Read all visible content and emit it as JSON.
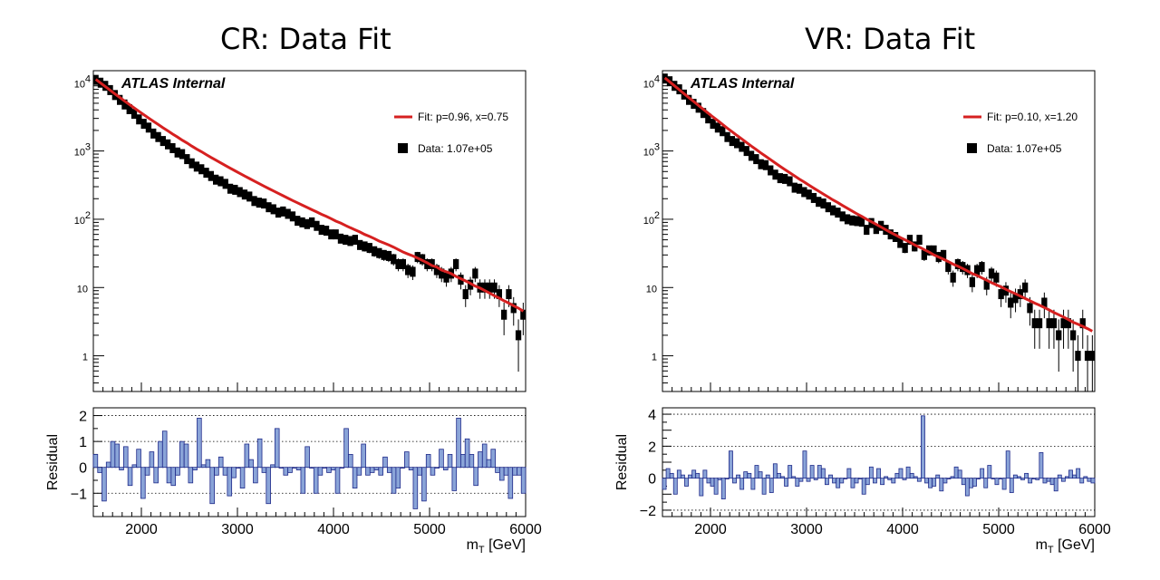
{
  "panels": [
    {
      "title": "CR: Data Fit",
      "atlas_label": "ATLAS Internal",
      "legend_fit": "Fit: p=0.96, x=0.75",
      "legend_data": "Data: 1.07e+05",
      "residual_label": "Residual",
      "xlabel_main": "m",
      "xlabel_sub": "T",
      "xlabel_unit": " [GeV]"
    },
    {
      "title": "VR: Data Fit",
      "atlas_label": "ATLAS Internal",
      "legend_fit": "Fit: p=0.10, x=1.20",
      "legend_data": "Data: 1.07e+05",
      "residual_label": "Residual",
      "xlabel_main": "m",
      "xlabel_sub": "T",
      "xlabel_unit": " [GeV]"
    }
  ],
  "colors": {
    "fit": "#d62020",
    "data": "#000000",
    "residual_fill": "#8aa4d8",
    "residual_edge": "#1f2a8a",
    "grid": "#000000"
  },
  "chart_data": [
    {
      "type": "line",
      "name": "CR",
      "x": [
        1525,
        1575,
        1625,
        1675,
        1725,
        1775,
        1825,
        1875,
        1925,
        1975,
        2025,
        2075,
        2125,
        2175,
        2225,
        2275,
        2325,
        2375,
        2425,
        2475,
        2525,
        2575,
        2625,
        2675,
        2725,
        2775,
        2825,
        2875,
        2925,
        2975,
        3025,
        3075,
        3125,
        3175,
        3225,
        3275,
        3325,
        3375,
        3425,
        3475,
        3525,
        3575,
        3625,
        3675,
        3725,
        3775,
        3825,
        3875,
        3925,
        3975,
        4025,
        4075,
        4125,
        4175,
        4225,
        4275,
        4325,
        4375,
        4425,
        4475,
        4525,
        4575,
        4625,
        4675,
        4725,
        4775,
        4825,
        4875,
        4925,
        4975,
        5025,
        5075,
        5125,
        5175,
        5225,
        5275,
        5325,
        5375,
        5425,
        5475,
        5525,
        5575,
        5625,
        5675,
        5725,
        5775,
        5825,
        5875,
        5925,
        5975
      ],
      "data_y": [
        11000,
        10000,
        9000,
        7800,
        6600,
        5600,
        4800,
        4100,
        3500,
        2900,
        2500,
        2200,
        1800,
        1600,
        1400,
        1250,
        1100,
        950,
        900,
        760,
        660,
        590,
        540,
        480,
        430,
        380,
        360,
        330,
        280,
        270,
        250,
        230,
        215,
        185,
        175,
        170,
        150,
        140,
        125,
        130,
        120,
        110,
        95,
        90,
        85,
        90,
        80,
        70,
        68,
        60,
        60,
        52,
        50,
        48,
        50,
        42,
        40,
        38,
        34,
        32,
        30,
        29,
        26,
        22,
        22,
        18,
        17,
        28,
        26,
        22,
        22,
        18,
        16,
        14,
        16,
        22,
        13,
        8,
        11,
        16,
        10,
        10,
        10,
        10,
        8,
        4,
        8,
        5,
        2,
        4
      ],
      "fit_y": [
        11200,
        9900,
        8750,
        7750,
        6850,
        6080,
        5400,
        4800,
        4270,
        3810,
        3400,
        3040,
        2720,
        2440,
        2190,
        1970,
        1770,
        1600,
        1440,
        1310,
        1180,
        1070,
        975,
        885,
        805,
        735,
        670,
        612,
        560,
        512,
        470,
        430,
        395,
        362,
        333,
        306,
        282,
        260,
        240,
        221,
        204,
        188,
        174,
        161,
        149,
        138,
        128,
        118,
        110,
        102,
        94,
        88,
        81,
        75,
        70,
        65,
        60,
        56,
        52,
        48,
        45,
        42,
        39,
        36,
        33,
        31,
        29,
        27,
        25,
        23,
        21,
        20,
        18,
        17,
        16,
        14.5,
        13.5,
        12.5,
        11.5,
        10.5,
        9.8,
        9,
        8.3,
        7.6,
        7,
        6.4,
        5.9,
        5.4,
        5,
        4.5
      ],
      "residuals": [
        0.5,
        -0.2,
        -1.3,
        0.2,
        1.0,
        0.9,
        -0.1,
        0.8,
        -0.7,
        0.1,
        0.7,
        -1.2,
        -0.3,
        0.6,
        -0.6,
        1.0,
        1.4,
        -0.6,
        -0.7,
        -0.3,
        1.0,
        0.9,
        -0.6,
        -0.1,
        1.9,
        0.1,
        0.3,
        -1.4,
        -0.3,
        0.4,
        -0.3,
        -1.1,
        -0.4,
        0.0,
        -0.8,
        0.9,
        0.3,
        -0.6,
        1.1,
        -0.2,
        -1.4,
        0.1,
        1.5,
        0.0,
        -0.3,
        -0.2,
        0.0,
        -0.1,
        -1.0,
        0.8,
        0.0,
        -1.0,
        -0.3,
        0.0,
        -0.2,
        -0.1,
        -1.0,
        0.0,
        1.5,
        0.5,
        -0.8,
        -0.3,
        0.9,
        -0.3,
        -0.2,
        -0.1,
        -0.3,
        0.4,
        -0.2,
        -1.0,
        -0.8,
        0.0,
        0.6,
        -0.1,
        -1.6,
        -0.3,
        -1.3,
        0.5,
        -0.3,
        0.0,
        0.7,
        -0.1,
        0.5,
        -0.9,
        1.9,
        0.5,
        1.1,
        0.5,
        -0.7,
        0.6,
        0.9,
        0.3,
        0.7,
        -0.2,
        -0.5,
        -0.3,
        -1.2,
        -0.3,
        -0.3,
        -1.0
      ],
      "xlim": [
        1500,
        6000
      ],
      "ylim": [
        0.3,
        15000
      ],
      "yscale": "log",
      "main_yticks": [
        "1",
        "10",
        "10^2",
        "10^3",
        "10^4"
      ],
      "xticks": [
        2000,
        3000,
        4000,
        5000,
        6000
      ],
      "res_ylim": [
        -1.9,
        2.3
      ],
      "res_yticks": [
        -1,
        0,
        1,
        2
      ]
    },
    {
      "type": "line",
      "name": "VR",
      "x": [
        1525,
        1575,
        1625,
        1675,
        1725,
        1775,
        1825,
        1875,
        1925,
        1975,
        2025,
        2075,
        2125,
        2175,
        2225,
        2275,
        2325,
        2375,
        2425,
        2475,
        2525,
        2575,
        2625,
        2675,
        2725,
        2775,
        2825,
        2875,
        2925,
        2975,
        3025,
        3075,
        3125,
        3175,
        3225,
        3275,
        3325,
        3375,
        3425,
        3475,
        3525,
        3575,
        3625,
        3675,
        3725,
        3775,
        3825,
        3875,
        3925,
        3975,
        4025,
        4075,
        4125,
        4175,
        4225,
        4275,
        4325,
        4375,
        4425,
        4475,
        4525,
        4575,
        4625,
        4675,
        4725,
        4775,
        4825,
        4875,
        4925,
        4975,
        5025,
        5075,
        5125,
        5175,
        5225,
        5275,
        5325,
        5375,
        5425,
        5475,
        5525,
        5575,
        5625,
        5675,
        5725,
        5775,
        5825,
        5875,
        5925,
        5975
      ],
      "data_y": [
        11500,
        10500,
        9000,
        8000,
        6700,
        5600,
        4900,
        4300,
        3600,
        3000,
        2500,
        2200,
        1950,
        1600,
        1400,
        1300,
        1150,
        1000,
        850,
        760,
        640,
        620,
        520,
        450,
        400,
        390,
        360,
        290,
        280,
        250,
        230,
        205,
        180,
        170,
        150,
        135,
        125,
        110,
        100,
        96,
        94,
        92,
        70,
        88,
        72,
        80,
        70,
        60,
        55,
        45,
        38,
        50,
        40,
        50,
        30,
        35,
        35,
        28,
        30,
        20,
        14,
        22,
        20,
        18,
        12,
        18,
        20,
        11,
        16,
        14,
        8,
        9,
        6,
        7,
        8,
        10,
        5,
        3,
        3,
        6,
        3,
        3,
        2,
        3,
        3,
        2,
        1,
        3,
        1,
        1
      ],
      "fit_y": [
        11800,
        10300,
        9000,
        7900,
        6900,
        6050,
        5300,
        4650,
        4080,
        3590,
        3160,
        2780,
        2450,
        2160,
        1910,
        1690,
        1500,
        1330,
        1180,
        1050,
        935,
        835,
        745,
        665,
        595,
        535,
        480,
        432,
        388,
        350,
        316,
        285,
        258,
        234,
        212,
        192,
        175,
        159,
        145,
        132,
        120,
        110,
        100,
        92,
        84,
        77,
        70,
        64,
        59,
        54,
        50,
        46,
        42,
        39,
        36,
        33,
        30,
        28,
        26,
        24,
        22,
        20.5,
        19,
        17.5,
        16,
        15,
        13.8,
        12.8,
        11.8,
        11,
        10.2,
        9.4,
        8.7,
        8.1,
        7.5,
        6.9,
        6.4,
        5.9,
        5.5,
        5.1,
        4.7,
        4.3,
        4,
        3.7,
        3.4,
        3.1,
        2.9,
        2.7,
        2.5,
        2.3
      ],
      "residuals": [
        -0.7,
        0.6,
        0.3,
        -1.0,
        0.5,
        0.2,
        -0.5,
        0.2,
        0.5,
        0.3,
        -1.1,
        0.5,
        -0.3,
        -0.5,
        -1.0,
        -0.1,
        -1.3,
        0.0,
        1.7,
        -0.3,
        0.2,
        -0.7,
        0.4,
        0.3,
        -0.7,
        0.8,
        0.4,
        -1.0,
        0.2,
        -0.9,
        0.9,
        0.3,
        0.1,
        -0.5,
        0.8,
        0.1,
        -0.5,
        -0.2,
        1.7,
        -0.2,
        0.8,
        -0.1,
        0.8,
        0.6,
        -0.4,
        0.2,
        -0.3,
        -0.6,
        -0.3,
        0.0,
        0.6,
        -0.6,
        -0.3,
        0.0,
        -1.0,
        -0.4,
        0.7,
        -0.3,
        0.6,
        -0.4,
        0.1,
        -0.1,
        -0.3,
        0.3,
        0.6,
        -0.1,
        0.7,
        0.3,
        0.1,
        -0.2,
        3.9,
        -0.3,
        -0.6,
        -0.5,
        0.2,
        -0.8,
        -0.3,
        0.0,
        0.1,
        0.7,
        0.5,
        -0.4,
        -1.1,
        -0.6,
        -0.5,
        0.0,
        0.6,
        -0.6,
        0.8,
        0.0,
        -0.4,
        0.0,
        -0.7,
        1.7,
        -0.9,
        0.2,
        0.1,
        -0.1,
        0.3,
        -0.3,
        0.0,
        -0.1,
        1.6,
        -0.3,
        -0.2,
        -0.4,
        -0.8,
        0.2,
        -0.2,
        0.1,
        0.5,
        0.2,
        0.6,
        -0.3,
        0.1,
        -0.2,
        -0.3
      ],
      "xlim": [
        1500,
        6000
      ],
      "ylim": [
        0.3,
        15000
      ],
      "yscale": "log",
      "main_yticks": [
        "1",
        "10",
        "10^2",
        "10^3",
        "10^4"
      ],
      "xticks": [
        2000,
        3000,
        4000,
        5000,
        6000
      ],
      "res_ylim": [
        -2.4,
        4.4
      ],
      "res_yticks": [
        -2,
        0,
        2,
        4
      ]
    }
  ]
}
